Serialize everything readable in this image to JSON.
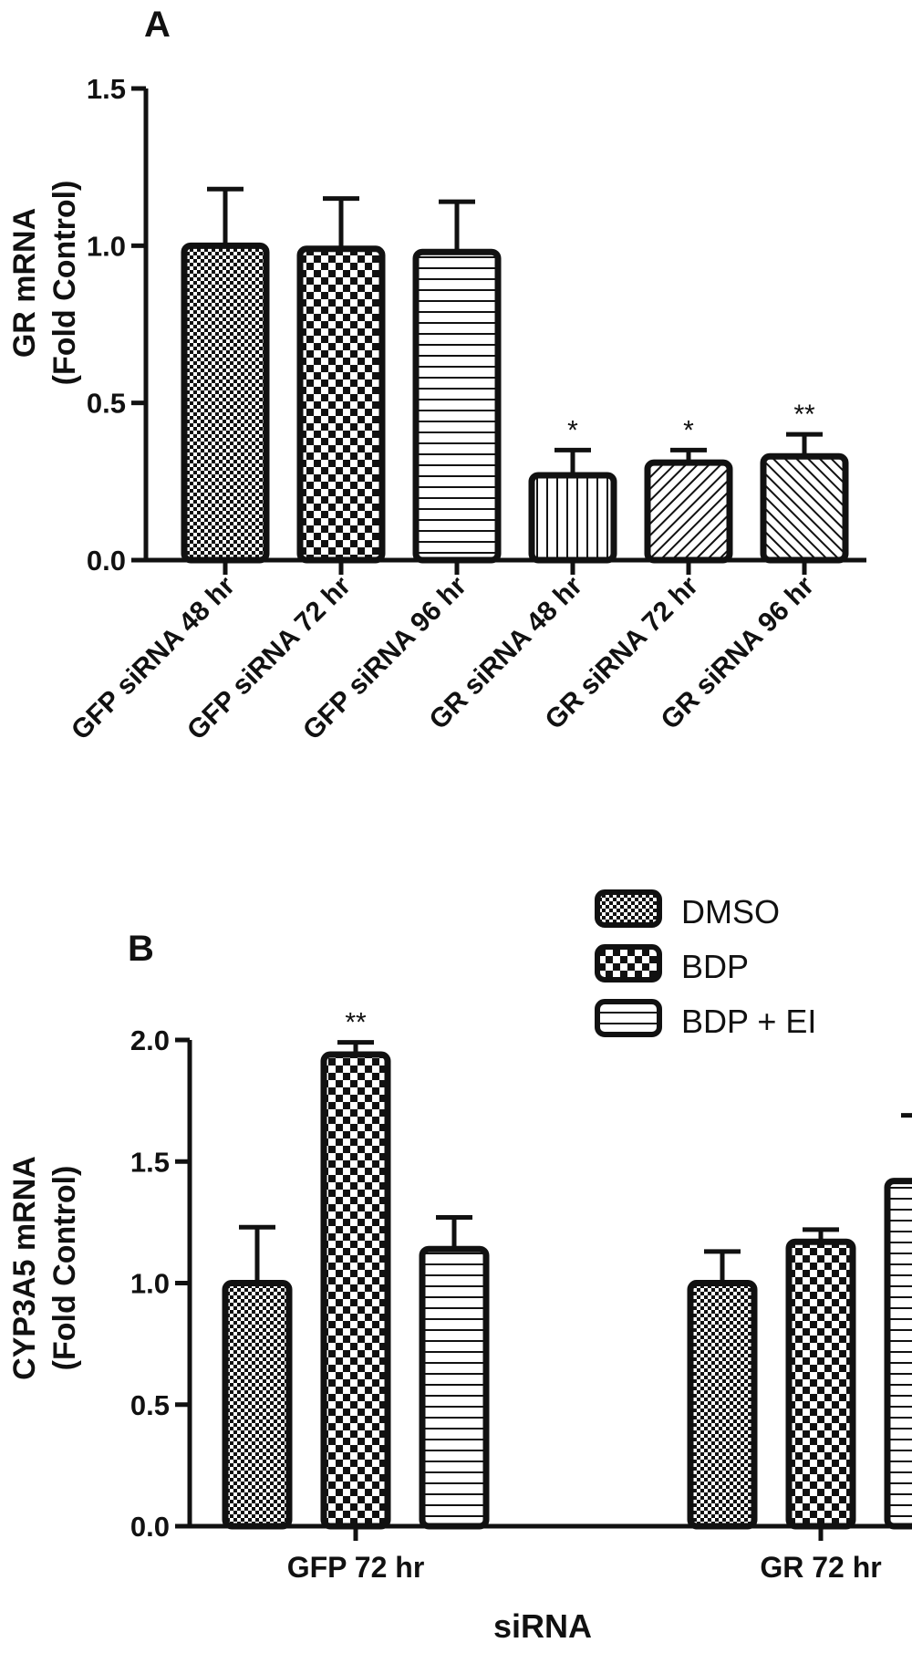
{
  "chart_data": [
    {
      "type": "bar",
      "panel_label": "A",
      "title": "",
      "xlabel": "",
      "ylabel_lines": [
        "GR mRNA",
        "(Fold Control)"
      ],
      "ylim": [
        0,
        1.5
      ],
      "yticks": [
        "0.0",
        "0.5",
        "1.0",
        "1.5"
      ],
      "categories": [
        "GFP siRNA 48 hr",
        "GFP siRNA 72 hr",
        "GFP siRNA 96 hr",
        "GR siRNA 48 hr",
        "GR siRNA 72 hr",
        "GR siRNA 96 hr"
      ],
      "values": [
        1.0,
        0.99,
        0.98,
        0.27,
        0.31,
        0.33
      ],
      "errors": [
        0.18,
        0.16,
        0.16,
        0.08,
        0.04,
        0.07
      ],
      "significance": [
        "",
        "",
        "",
        "*",
        "*",
        "**"
      ],
      "patterns": [
        "fine-check",
        "checker",
        "horizontal",
        "vertical",
        "diagonal-right",
        "diagonal-left"
      ],
      "grid": false
    },
    {
      "type": "bar",
      "panel_label": "B",
      "title": "",
      "xlabel": "siRNA",
      "ylabel_lines": [
        "CYP3A5 mRNA",
        "(Fold Control)"
      ],
      "ylim": [
        0,
        2.0
      ],
      "yticks": [
        "0.0",
        "0.5",
        "1.0",
        "1.5",
        "2.0"
      ],
      "categories": [
        "GFP 72 hr",
        "GR 72 hr"
      ],
      "series": [
        {
          "name": "DMSO",
          "values": [
            1.0,
            1.0
          ],
          "errors": [
            0.23,
            0.13
          ],
          "significance": [
            "",
            ""
          ],
          "pattern": "fine-check"
        },
        {
          "name": "BDP",
          "values": [
            1.94,
            1.17
          ],
          "errors": [
            0.05,
            0.05
          ],
          "significance": [
            "**",
            ""
          ],
          "pattern": "checker"
        },
        {
          "name": "BDP + EI",
          "values": [
            1.14,
            1.42
          ],
          "errors": [
            0.13,
            0.27
          ],
          "significance": [
            "",
            ""
          ],
          "pattern": "horizontal"
        }
      ],
      "legend_position": "top-right",
      "grid": false
    }
  ]
}
